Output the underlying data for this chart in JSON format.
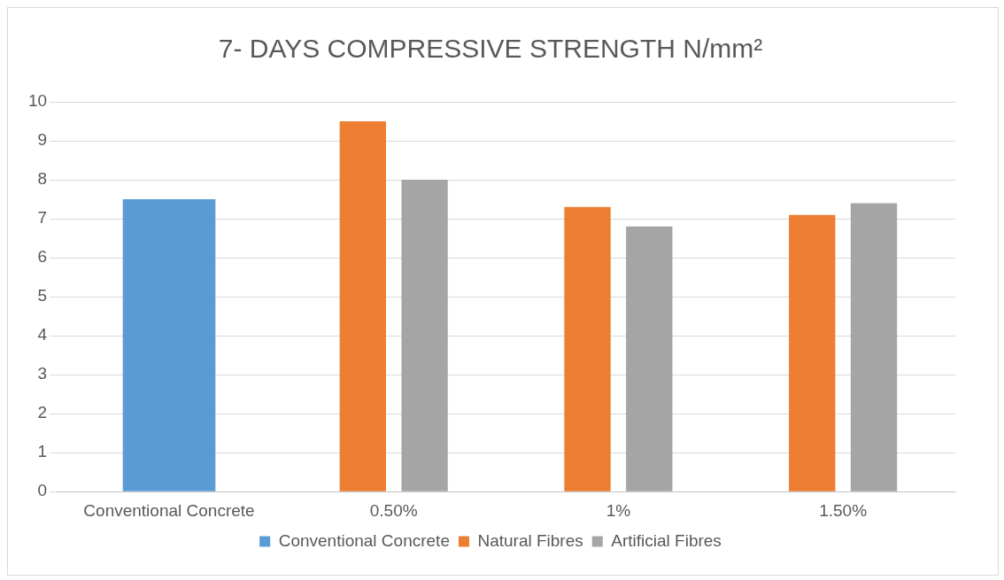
{
  "chart_data": {
    "type": "bar",
    "title": "7- DAYS COMPRESSIVE STRENGTH N/mm²",
    "categories": [
      "Conventional Concrete",
      "0.50%",
      "1%",
      "1.50%"
    ],
    "series": [
      {
        "name": "Conventional Concrete",
        "color": "#5b9bd5",
        "values": [
          7.5,
          null,
          null,
          null
        ]
      },
      {
        "name": "Natural Fibres",
        "color": "#ed7d31",
        "values": [
          null,
          9.5,
          7.3,
          7.1
        ]
      },
      {
        "name": "Artificial Fibres",
        "color": "#a5a5a5",
        "values": [
          null,
          8.0,
          6.8,
          7.4
        ]
      }
    ],
    "ylim": [
      0,
      10
    ],
    "yticks": [
      0,
      1,
      2,
      3,
      4,
      5,
      6,
      7,
      8,
      9,
      10
    ],
    "grid": "y",
    "legend": "bottom"
  }
}
